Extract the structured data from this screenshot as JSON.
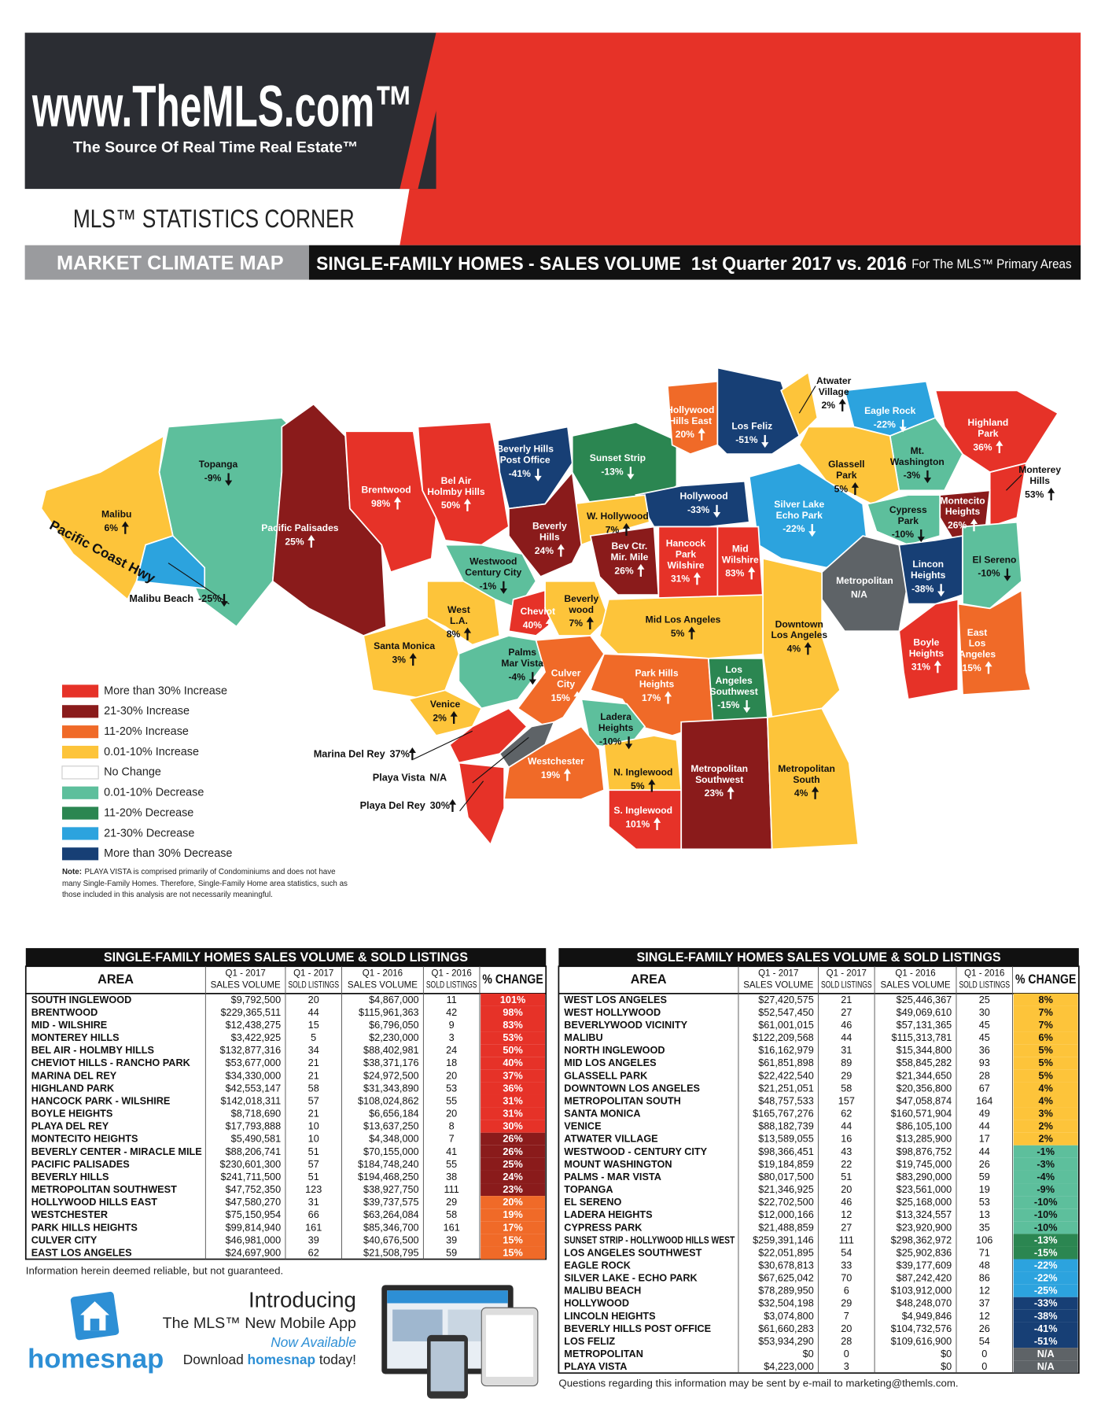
{
  "header": {
    "site": "www.TheMLS.com™",
    "tagline": "The Source Of Real Time Real Estate™",
    "section": "MLS™ STATISTICS CORNER",
    "banner_left": "MARKET CLIMATE MAP",
    "banner_right": "SINGLE-FAMILY HOMES  -  SALES VOLUME",
    "banner_period": "1st Quarter 2017 vs. 2016",
    "banner_scope": "For The MLS™ Primary Areas"
  },
  "map": {
    "road": "Pacific Coast Hwy",
    "na_color": "#5e6367",
    "regions": [
      {
        "name": [
          "Topanga"
        ],
        "change": "-9%",
        "color": "#5dbf9c"
      },
      {
        "name": [
          "Malibu"
        ],
        "change": "6%",
        "color": "#fdc43a"
      },
      {
        "name": [
          "Malibu Beach"
        ],
        "change": "-25%",
        "color": "#2ca3de"
      },
      {
        "name": [
          "Pacific Palisades"
        ],
        "change": "25%",
        "color": "#8a1b1b"
      },
      {
        "name": [
          "Brentwood"
        ],
        "change": "98%",
        "color": "#e63228"
      },
      {
        "name": [
          "Bel Air",
          "Holmby Hills"
        ],
        "change": "50%",
        "color": "#e63228"
      },
      {
        "name": [
          "Beverly Hills",
          "Post Office"
        ],
        "change": "-41%",
        "color": "#173f75"
      },
      {
        "name": [
          "Sunset Strip"
        ],
        "change": "-13%",
        "color": "#2b8651"
      },
      {
        "name": [
          "Hollywood",
          "Hills East"
        ],
        "change": "20%",
        "color": "#f06a28"
      },
      {
        "name": [
          "Los Feliz"
        ],
        "change": "-51%",
        "color": "#173f75"
      },
      {
        "name": [
          "Atwater",
          "Village"
        ],
        "change": "2%",
        "color": "#fdc43a"
      },
      {
        "name": [
          "Eagle Rock"
        ],
        "change": "-22%",
        "color": "#2ca3de"
      },
      {
        "name": [
          "Highland",
          "Park"
        ],
        "change": "36%",
        "color": "#e63228"
      },
      {
        "name": [
          "Mt.",
          "Washington"
        ],
        "change": "-3%",
        "color": "#5dbf9c"
      },
      {
        "name": [
          "Glassell",
          "Park"
        ],
        "change": "5%",
        "color": "#fdc43a"
      },
      {
        "name": [
          "Monterey",
          "Hills"
        ],
        "change": "53%",
        "color": "#e63228"
      },
      {
        "name": [
          "Montecito",
          "Heights"
        ],
        "change": "26%",
        "color": "#8a1b1b"
      },
      {
        "name": [
          "Cypress",
          "Park"
        ],
        "change": "-10%",
        "color": "#5dbf9c"
      },
      {
        "name": [
          "Hollywood"
        ],
        "change": "-33%",
        "color": "#173f75"
      },
      {
        "name": [
          "Silver Lake",
          "Echo Park"
        ],
        "change": "-22%",
        "color": "#2ca3de"
      },
      {
        "name": [
          "W. Hollywood"
        ],
        "change": "7%",
        "color": "#fdc43a"
      },
      {
        "name": [
          "Beverly",
          "Hills"
        ],
        "change": "24%",
        "color": "#8a1b1b"
      },
      {
        "name": [
          "Bev Ctr.",
          "Mir. Mile"
        ],
        "change": "26%",
        "color": "#8a1b1b"
      },
      {
        "name": [
          "Hancock",
          "Park",
          "Wilshire"
        ],
        "change": "31%",
        "color": "#e63228"
      },
      {
        "name": [
          "Mid",
          "Wilshire"
        ],
        "change": "83%",
        "color": "#e63228"
      },
      {
        "name": [
          "Metropolitan"
        ],
        "change": "N/A",
        "color": "#5e6367"
      },
      {
        "name": [
          "Lincon",
          "Heights"
        ],
        "change": "-38%",
        "color": "#173f75"
      },
      {
        "name": [
          "El Sereno"
        ],
        "change": "-10%",
        "color": "#5dbf9c"
      },
      {
        "name": [
          "Westwood",
          "Century City"
        ],
        "change": "-1%",
        "color": "#5dbf9c"
      },
      {
        "name": [
          "West",
          "L.A."
        ],
        "change": "8%",
        "color": "#fdc43a"
      },
      {
        "name": [
          "Cheviot"
        ],
        "change": "40%",
        "color": "#e63228"
      },
      {
        "name": [
          "Beverly",
          "wood"
        ],
        "change": "7%",
        "color": "#fdc43a"
      },
      {
        "name": [
          "Santa Monica"
        ],
        "change": "3%",
        "color": "#fdc43a"
      },
      {
        "name": [
          "Mid Los Angeles"
        ],
        "change": "5%",
        "color": "#fdc43a"
      },
      {
        "name": [
          "Downtown",
          "Los Angeles"
        ],
        "change": "4%",
        "color": "#fdc43a"
      },
      {
        "name": [
          "Boyle",
          "Heights"
        ],
        "change": "31%",
        "color": "#e63228"
      },
      {
        "name": [
          "East",
          "Los",
          "Angeles"
        ],
        "change": "15%",
        "color": "#f06a28"
      },
      {
        "name": [
          "Palms",
          "Mar Vista"
        ],
        "change": "-4%",
        "color": "#5dbf9c"
      },
      {
        "name": [
          "Culver",
          "City"
        ],
        "change": "15%",
        "color": "#f06a28"
      },
      {
        "name": [
          "Venice"
        ],
        "change": "2%",
        "color": "#fdc43a"
      },
      {
        "name": [
          "Park Hills",
          "Heights"
        ],
        "change": "17%",
        "color": "#f06a28"
      },
      {
        "name": [
          "Los",
          "Angeles",
          "Southwest"
        ],
        "change": "-15%",
        "color": "#2b8651"
      },
      {
        "name": [
          "Ladera",
          "Heights"
        ],
        "change": "-10%",
        "color": "#5dbf9c"
      },
      {
        "name": [
          "Marina Del Rey"
        ],
        "change": "37%",
        "color": "#e63228"
      },
      {
        "name": [
          "Playa Vista"
        ],
        "change": "N/A",
        "color": "#5e6367"
      },
      {
        "name": [
          "Playa Del Rey"
        ],
        "change": "30%",
        "color": "#e63228"
      },
      {
        "name": [
          "Westchester"
        ],
        "change": "19%",
        "color": "#f06a28"
      },
      {
        "name": [
          "N. Inglewood"
        ],
        "change": "5%",
        "color": "#fdc43a"
      },
      {
        "name": [
          "S. Inglewood"
        ],
        "change": "101%",
        "color": "#e63228"
      },
      {
        "name": [
          "Metropolitan",
          "Southwest"
        ],
        "change": "23%",
        "color": "#8a1b1b"
      },
      {
        "name": [
          "Metropolitan",
          "South"
        ],
        "change": "4%",
        "color": "#fdc43a"
      }
    ]
  },
  "legend": [
    {
      "label": "More than 30% Increase",
      "color": "#e63228"
    },
    {
      "label": "21-30% Increase",
      "color": "#8a1b1b"
    },
    {
      "label": "11-20% Increase",
      "color": "#f06a28"
    },
    {
      "label": "0.01-10% Increase",
      "color": "#fdc43a"
    },
    {
      "label": "No Change",
      "color": "#ffffff"
    },
    {
      "label": "0.01-10% Decrease",
      "color": "#5dbf9c"
    },
    {
      "label": "11-20% Decrease",
      "color": "#2b8651"
    },
    {
      "label": "21-30% Decrease",
      "color": "#2ca3de"
    },
    {
      "label": "More than 30% Decrease",
      "color": "#173f75"
    }
  ],
  "note": {
    "label": "Note:",
    "lines": [
      "PLAYA VISTA is comprised primarily of Condominiums and does not have",
      "many Single-Family Homes. Therefore, Single-Family Home area statistics, such as",
      "those included in this analysis are not necessarily meaningful."
    ]
  },
  "tables": [
    {
      "title": "SINGLE-FAMILY HOMES SALES VOLUME & SOLD LISTINGS",
      "columns": [
        [
          "AREA"
        ],
        [
          "Q1 - 2017",
          "SALES VOLUME"
        ],
        [
          "Q1 - 2017",
          "SOLD LISTINGS"
        ],
        [
          "Q1 - 2016",
          "SALES VOLUME"
        ],
        [
          "Q1 - 2016",
          "SOLD LISTINGS"
        ],
        [
          "% CHANGE"
        ]
      ],
      "rows": [
        [
          "SOUTH INGLEWOOD",
          "$9,792,500",
          "20",
          "$4,867,000",
          "11",
          "101%"
        ],
        [
          "BRENTWOOD",
          "$229,365,511",
          "44",
          "$115,961,363",
          "42",
          "98%"
        ],
        [
          "MID - WILSHIRE",
          "$12,438,275",
          "15",
          "$6,796,050",
          "9",
          "83%"
        ],
        [
          "MONTEREY HILLS",
          "$3,422,925",
          "5",
          "$2,230,000",
          "3",
          "53%"
        ],
        [
          "BEL AIR - HOLMBY HILLS",
          "$132,877,316",
          "34",
          "$88,402,981",
          "24",
          "50%"
        ],
        [
          "CHEVIOT HILLS - RANCHO PARK",
          "$53,677,000",
          "21",
          "$38,371,176",
          "18",
          "40%"
        ],
        [
          "MARINA DEL REY",
          "$34,330,000",
          "21",
          "$24,972,500",
          "20",
          "37%"
        ],
        [
          "HIGHLAND PARK",
          "$42,553,147",
          "58",
          "$31,343,890",
          "53",
          "36%"
        ],
        [
          "HANCOCK PARK - WILSHIRE",
          "$142,018,311",
          "57",
          "$108,024,862",
          "55",
          "31%"
        ],
        [
          "BOYLE HEIGHTS",
          "$8,718,690",
          "21",
          "$6,656,184",
          "20",
          "31%"
        ],
        [
          "PLAYA DEL REY",
          "$17,793,888",
          "10",
          "$13,637,250",
          "8",
          "30%"
        ],
        [
          "MONTECITO HEIGHTS",
          "$5,490,581",
          "10",
          "$4,348,000",
          "7",
          "26%"
        ],
        [
          "BEVERLY CENTER - MIRACLE MILE",
          "$88,206,741",
          "51",
          "$70,155,000",
          "41",
          "26%"
        ],
        [
          "PACIFIC PALISADES",
          "$230,601,300",
          "57",
          "$184,748,240",
          "55",
          "25%"
        ],
        [
          "BEVERLY HILLS",
          "$241,711,500",
          "51",
          "$194,468,250",
          "38",
          "24%"
        ],
        [
          "METROPOLITAN SOUTHWEST",
          "$47,752,350",
          "123",
          "$38,927,750",
          "111",
          "23%"
        ],
        [
          "HOLLYWOOD HILLS EAST",
          "$47,580,270",
          "31",
          "$39,737,575",
          "29",
          "20%"
        ],
        [
          "WESTCHESTER",
          "$75,150,954",
          "66",
          "$63,264,084",
          "58",
          "19%"
        ],
        [
          "PARK HILLS HEIGHTS",
          "$99,814,940",
          "161",
          "$85,346,700",
          "161",
          "17%"
        ],
        [
          "CULVER CITY",
          "$46,981,000",
          "39",
          "$40,676,500",
          "39",
          "15%"
        ],
        [
          "EAST LOS ANGELES",
          "$24,697,900",
          "62",
          "$21,508,795",
          "59",
          "15%"
        ]
      ],
      "row_colors": [
        "#e63228",
        "#e63228",
        "#e63228",
        "#e63228",
        "#e63228",
        "#e63228",
        "#e63228",
        "#e63228",
        "#e63228",
        "#e63228",
        "#e63228",
        "#8a1b1b",
        "#8a1b1b",
        "#8a1b1b",
        "#8a1b1b",
        "#8a1b1b",
        "#f06a28",
        "#f06a28",
        "#f06a28",
        "#f06a28",
        "#f06a28"
      ]
    },
    {
      "title": "SINGLE-FAMILY HOMES SALES VOLUME & SOLD LISTINGS",
      "columns": [
        [
          "AREA"
        ],
        [
          "Q1 - 2017",
          "SALES VOLUME"
        ],
        [
          "Q1 - 2017",
          "SOLD LISTINGS"
        ],
        [
          "Q1 - 2016",
          "SALES VOLUME"
        ],
        [
          "Q1 - 2016",
          "SOLD LISTINGS"
        ],
        [
          "% CHANGE"
        ]
      ],
      "rows": [
        [
          "WEST LOS ANGELES",
          "$27,420,575",
          "21",
          "$25,446,367",
          "25",
          "8%"
        ],
        [
          "WEST HOLLYWOOD",
          "$52,547,450",
          "27",
          "$49,069,610",
          "30",
          "7%"
        ],
        [
          "BEVERLYWOOD VICINITY",
          "$61,001,015",
          "46",
          "$57,131,365",
          "45",
          "7%"
        ],
        [
          "MALIBU",
          "$122,209,568",
          "44",
          "$115,313,781",
          "45",
          "6%"
        ],
        [
          "NORTH INGLEWOOD",
          "$16,162,979",
          "31",
          "$15,344,800",
          "36",
          "5%"
        ],
        [
          "MID LOS ANGELES",
          "$61,851,898",
          "89",
          "$58,845,282",
          "93",
          "5%"
        ],
        [
          "GLASSELL PARK",
          "$22,422,540",
          "29",
          "$21,344,650",
          "28",
          "5%"
        ],
        [
          "DOWNTOWN LOS ANGELES",
          "$21,251,051",
          "58",
          "$20,356,800",
          "67",
          "4%"
        ],
        [
          "METROPOLITAN SOUTH",
          "$48,757,533",
          "157",
          "$47,058,874",
          "164",
          "4%"
        ],
        [
          "SANTA MONICA",
          "$165,767,276",
          "62",
          "$160,571,904",
          "49",
          "3%"
        ],
        [
          "VENICE",
          "$88,182,739",
          "44",
          "$86,105,100",
          "44",
          "2%"
        ],
        [
          "ATWATER VILLAGE",
          "$13,589,055",
          "16",
          "$13,285,900",
          "17",
          "2%"
        ],
        [
          "WESTWOOD - CENTURY CITY",
          "$98,366,451",
          "43",
          "$98,876,752",
          "44",
          "-1%"
        ],
        [
          "MOUNT WASHINGTON",
          "$19,184,859",
          "22",
          "$19,745,000",
          "26",
          "-3%"
        ],
        [
          "PALMS - MAR VISTA",
          "$80,017,500",
          "51",
          "$83,290,000",
          "59",
          "-4%"
        ],
        [
          "TOPANGA",
          "$21,346,925",
          "20",
          "$23,561,000",
          "19",
          "-9%"
        ],
        [
          "EL SERENO",
          "$22,702,500",
          "46",
          "$25,168,000",
          "53",
          "-10%"
        ],
        [
          "LADERA HEIGHTS",
          "$12,000,166",
          "12",
          "$13,324,557",
          "13",
          "-10%"
        ],
        [
          "CYPRESS PARK",
          "$21,488,859",
          "27",
          "$23,920,900",
          "35",
          "-10%"
        ],
        [
          "SUNSET STRIP - HOLLYWOOD HILLS WEST",
          "$259,391,146",
          "111",
          "$298,362,972",
          "106",
          "-13%"
        ],
        [
          "LOS ANGELES SOUTHWEST",
          "$22,051,895",
          "54",
          "$25,902,836",
          "71",
          "-15%"
        ],
        [
          "EAGLE ROCK",
          "$30,678,813",
          "33",
          "$39,177,609",
          "48",
          "-22%"
        ],
        [
          "SILVER LAKE - ECHO PARK",
          "$67,625,042",
          "70",
          "$87,242,420",
          "86",
          "-22%"
        ],
        [
          "MALIBU BEACH",
          "$78,289,950",
          "6",
          "$103,912,000",
          "12",
          "-25%"
        ],
        [
          "HOLLYWOOD",
          "$32,504,198",
          "29",
          "$48,248,070",
          "37",
          "-33%"
        ],
        [
          "LINCOLN HEIGHTS",
          "$3,074,800",
          "7",
          "$4,949,846",
          "12",
          "-38%"
        ],
        [
          "BEVERLY HILLS POST OFFICE",
          "$61,660,283",
          "20",
          "$104,732,576",
          "26",
          "-41%"
        ],
        [
          "LOS FELIZ",
          "$53,934,290",
          "28",
          "$109,616,900",
          "54",
          "-51%"
        ],
        [
          "METROPOLITAN",
          "$0",
          "0",
          "$0",
          "0",
          "N/A"
        ],
        [
          "PLAYA VISTA",
          "$4,223,000",
          "3",
          "$0",
          "0",
          "N/A"
        ]
      ],
      "row_colors": [
        "#fdc43a",
        "#fdc43a",
        "#fdc43a",
        "#fdc43a",
        "#fdc43a",
        "#fdc43a",
        "#fdc43a",
        "#fdc43a",
        "#fdc43a",
        "#fdc43a",
        "#fdc43a",
        "#fdc43a",
        "#5dbf9c",
        "#5dbf9c",
        "#5dbf9c",
        "#5dbf9c",
        "#5dbf9c",
        "#5dbf9c",
        "#5dbf9c",
        "#2b8651",
        "#2b8651",
        "#2ca3de",
        "#2ca3de",
        "#2ca3de",
        "#173f75",
        "#173f75",
        "#173f75",
        "#173f75",
        "#5e6367",
        "#5e6367"
      ]
    }
  ],
  "disclaimer": "Information herein deemed reliable, but not guaranteed.",
  "ad": {
    "brand": "homesnap",
    "heading": "Introducing",
    "app": "The MLS™ New Mobile App",
    "availability": "Now Available",
    "cta": [
      "Download ",
      "homesnap",
      " today!"
    ]
  },
  "contact": "Questions regarding this information may be sent by e-mail to marketing@themls.com."
}
